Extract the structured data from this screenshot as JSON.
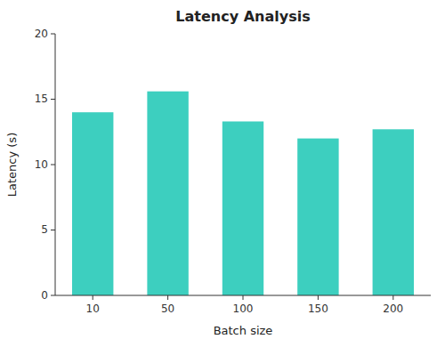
{
  "chart_data": {
    "type": "bar",
    "title": "Latency Analysis",
    "xlabel": "Batch size",
    "ylabel": "Latency (s)",
    "categories": [
      "10",
      "50",
      "100",
      "150",
      "200"
    ],
    "values": [
      14.0,
      15.6,
      13.3,
      12.0,
      12.7
    ],
    "color": "#3DCFBF",
    "ylim": [
      0,
      20
    ],
    "yticks": [
      0,
      5,
      10,
      15,
      20
    ],
    "grid": false
  }
}
